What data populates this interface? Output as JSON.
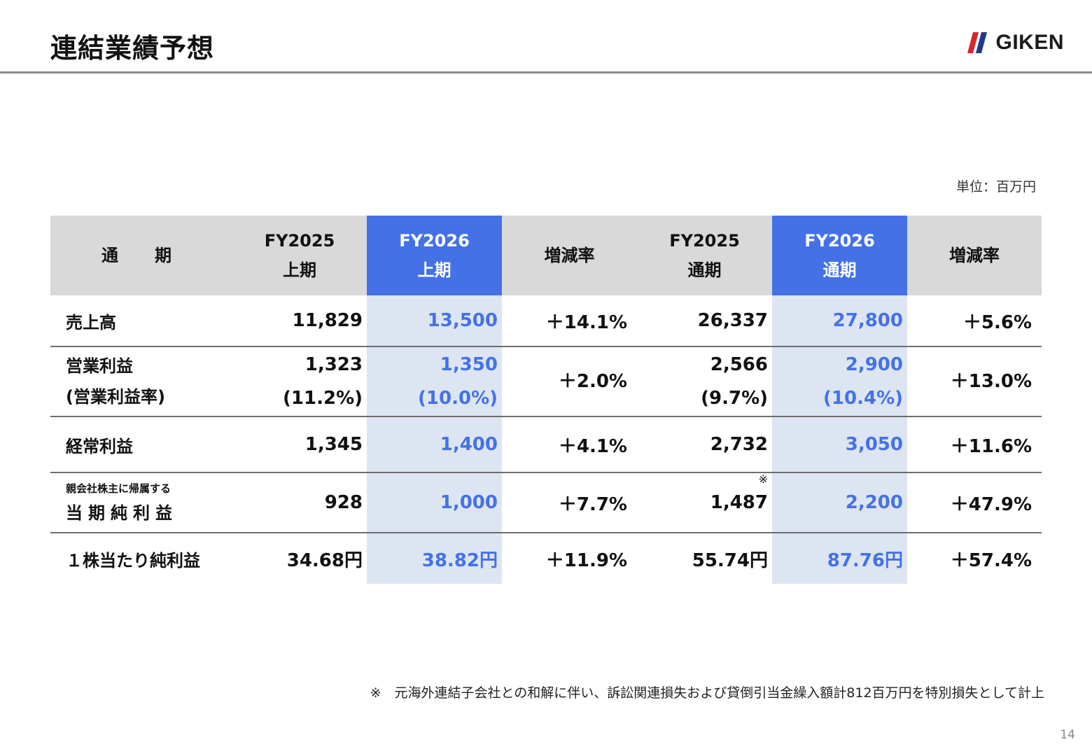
{
  "page": {
    "title": "連結業績予想",
    "logo_text": "GIKEN",
    "unit_note": "単位：百万円",
    "footnote": "※　元海外連結子会社との和解に伴い、訴訟関連損失および貸倒引当金繰入額計812百万円を特別損失として計上",
    "page_number": "14"
  },
  "colors": {
    "highlight": "#4472e6",
    "highlight_cell": "#dde5f3",
    "header_bg": "#d9d9d9"
  },
  "table": {
    "headers": {
      "label": "通　期",
      "h1_line1": "FY2025",
      "h1_line2": "上期",
      "h2_line1": "FY2026",
      "h2_line2": "上期",
      "h3": "増減率",
      "h4_line1": "FY2025",
      "h4_line2": "通期",
      "h5_line1": "FY2026",
      "h5_line2": "通期",
      "h6": "増減率"
    },
    "rows": {
      "sales": {
        "label": "売上高",
        "fy25h1": "11,829",
        "fy26h1": "13,500",
        "chg_h1": "＋14.1%",
        "fy25": "26,337",
        "fy26": "27,800",
        "chg": "＋5.6%"
      },
      "op": {
        "label": "営業利益",
        "sublabel": "(営業利益率)",
        "fy25h1": "1,323",
        "fy25h1_sub": "(11.2%)",
        "fy26h1": "1,350",
        "fy26h1_sub": "(10.0%)",
        "chg_h1": "＋2.0%",
        "fy25": "2,566",
        "fy25_sub": "(9.7%)",
        "fy26": "2,900",
        "fy26_sub": "(10.4%)",
        "chg": "＋13.0%"
      },
      "ordinary": {
        "label": "経常利益",
        "fy25h1": "1,345",
        "fy26h1": "1,400",
        "chg_h1": "＋4.1%",
        "fy25": "2,732",
        "fy26": "3,050",
        "chg": "＋11.6%"
      },
      "net": {
        "label_small": "親会社株主に帰属する",
        "label": "当期純利益",
        "fy25h1": "928",
        "fy26h1": "1,000",
        "chg_h1": "＋7.7%",
        "fy25": "1,487",
        "fy25_mark": "※",
        "fy26": "2,200",
        "chg": "＋47.9%"
      },
      "eps": {
        "label": "１株当たり純利益",
        "fy25h1": "34.68円",
        "fy26h1": "38.82円",
        "chg_h1": "＋11.9%",
        "fy25": "55.74円",
        "fy26": "87.76円",
        "chg": "＋57.4%"
      }
    }
  }
}
